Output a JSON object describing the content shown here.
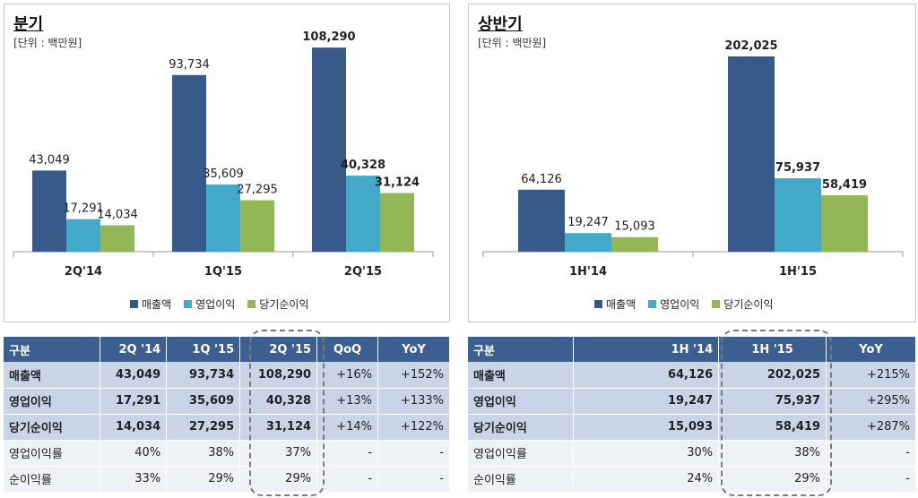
{
  "colors": {
    "sales": "#375a8a",
    "op_profit": "#43a9c9",
    "net_income": "#93b656",
    "header_bg": "#3b5f8f"
  },
  "chart_data": [
    {
      "type": "bar",
      "title": "분기",
      "unit": "[단위 : 백만원]",
      "categories": [
        "2Q'14",
        "1Q'15",
        "2Q'15"
      ],
      "series": [
        {
          "name": "매출액",
          "values": [
            43049,
            93734,
            108290
          ]
        },
        {
          "name": "영업이익",
          "values": [
            17291,
            35609,
            40328
          ]
        },
        {
          "name": "당기순이익",
          "values": [
            14034,
            27295,
            31124
          ]
        }
      ],
      "value_labels": [
        [
          "43,049",
          "93,734",
          "108,290"
        ],
        [
          "17,291",
          "35,609",
          "40,328"
        ],
        [
          "14,034",
          "27,295",
          "31,124"
        ]
      ],
      "bold_category_index": 2,
      "ylim": [
        0,
        115000
      ],
      "legend": "bottom"
    },
    {
      "type": "bar",
      "title": "상반기",
      "unit": "[단위 : 백만원]",
      "categories": [
        "1H'14",
        "1H'15"
      ],
      "series": [
        {
          "name": "매출액",
          "values": [
            64126,
            202025
          ]
        },
        {
          "name": "영업이익",
          "values": [
            19247,
            75937
          ]
        },
        {
          "name": "당기순이익",
          "values": [
            15093,
            58419
          ]
        }
      ],
      "value_labels": [
        [
          "64,126",
          "202,025"
        ],
        [
          "19,247",
          "75,937"
        ],
        [
          "15,093",
          "58,419"
        ]
      ],
      "bold_category_index": 1,
      "ylim": [
        0,
        215000
      ],
      "legend": "bottom"
    }
  ],
  "tables": [
    {
      "headers": [
        "구분",
        "2Q '14",
        "1Q '15",
        "2Q '15",
        "QoQ",
        "YoY"
      ],
      "rows": [
        {
          "style": "bold",
          "cells": [
            "매출액",
            "43,049",
            "93,734",
            "108,290",
            "+16%",
            "+152%"
          ]
        },
        {
          "style": "bold",
          "cells": [
            "영업이익",
            "17,291",
            "35,609",
            "40,328",
            "+13%",
            "+133%"
          ]
        },
        {
          "style": "bold",
          "cells": [
            "당기순이익",
            "14,034",
            "27,295",
            "31,124",
            "+14%",
            "+122%"
          ]
        },
        {
          "style": "plain",
          "cells": [
            "영업이익률",
            "40%",
            "38%",
            "37%",
            "-",
            "-"
          ]
        },
        {
          "style": "plain",
          "cells": [
            "순이익률",
            "33%",
            "29%",
            "29%",
            "-",
            "-"
          ]
        }
      ]
    },
    {
      "headers": [
        "구분",
        "1H '14",
        "1H '15",
        "YoY"
      ],
      "rows": [
        {
          "style": "bold",
          "cells": [
            "매출액",
            "64,126",
            "202,025",
            "+215%"
          ]
        },
        {
          "style": "bold",
          "cells": [
            "영업이익",
            "19,247",
            "75,937",
            "+295%"
          ]
        },
        {
          "style": "bold",
          "cells": [
            "당기순이익",
            "15,093",
            "58,419",
            "+287%"
          ]
        },
        {
          "style": "plain",
          "cells": [
            "영업이익률",
            "30%",
            "38%",
            "-"
          ]
        },
        {
          "style": "plain",
          "cells": [
            "순이익률",
            "24%",
            "29%",
            "-"
          ]
        }
      ]
    }
  ]
}
